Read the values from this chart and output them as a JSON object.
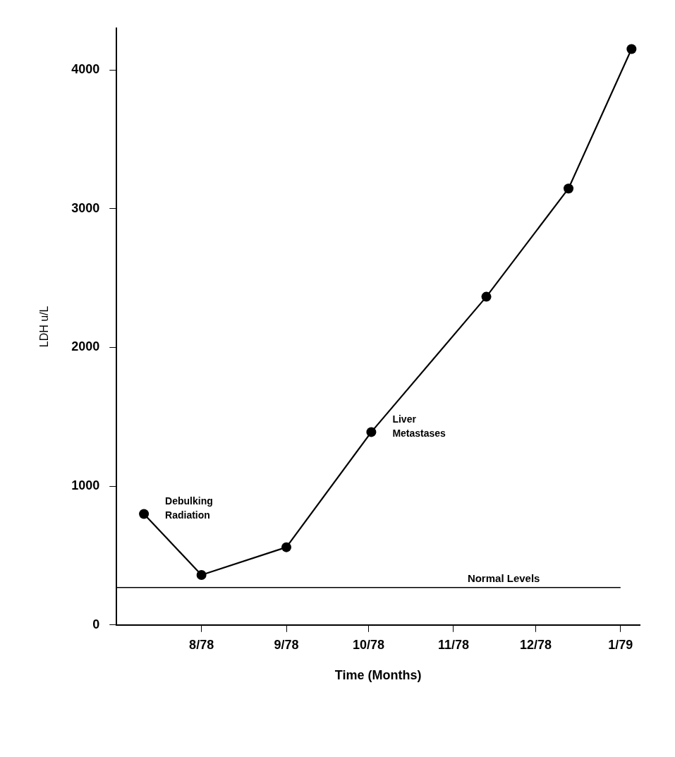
{
  "chart_data": {
    "type": "line",
    "xlabel": "Time (Months)",
    "ylabel": "LDH u/L",
    "x": [
      "1978-07-11",
      "1978-08-01",
      "1978-09-01",
      "1978-10-02",
      "1978-11-13",
      "1978-12-13",
      "1979-01-05"
    ],
    "series": [
      {
        "color": "#000000",
        "values": [
          800,
          360,
          560,
          1390,
          2365,
          3145,
          4150
        ]
      }
    ],
    "xlim": [
      "1978-07-01",
      "1979-01-08"
    ],
    "xticks": [
      {
        "value": "1978-08-01",
        "label": "8/78"
      },
      {
        "value": "1978-09-01",
        "label": "9/78"
      },
      {
        "value": "1978-10-01",
        "label": "10/78"
      },
      {
        "value": "1978-11-01",
        "label": "11/78"
      },
      {
        "value": "1978-12-01",
        "label": "12/78"
      },
      {
        "value": "1979-01-01",
        "label": "1/79"
      }
    ],
    "ylim": [
      0,
      4300
    ],
    "yticks": [
      0,
      1000,
      2000,
      3000,
      4000
    ],
    "ref_lines": [
      {
        "axis": "y",
        "value": 270,
        "label": "Normal Levels",
        "color": "#000000"
      }
    ],
    "annotations": [
      {
        "text": "Debulking Radiation",
        "x": "1978-07-11",
        "y": 800
      },
      {
        "text": "Liver Metastases",
        "x": "1978-10-02",
        "y": 1390
      }
    ],
    "grid": false,
    "legend": false,
    "marker": "circle",
    "line_style": "solid"
  }
}
